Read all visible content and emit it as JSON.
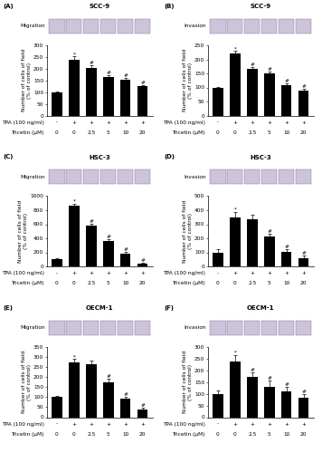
{
  "chart_data": [
    {
      "type": "bar",
      "panel_label": "(A)",
      "title": "SCC-9",
      "image_label": "Migration",
      "y_label": "Number of cells of field\n(% of control)",
      "color": "#000000",
      "categories": [
        null,
        null,
        null,
        null,
        null,
        null
      ],
      "values": [
        100,
        240,
        205,
        165,
        153,
        125
      ],
      "errors": [
        4,
        12,
        8,
        8,
        6,
        5
      ],
      "marks": [
        null,
        "*",
        "#",
        "#",
        "#",
        "#"
      ],
      "treatment_rows": [
        {
          "name": "TPA (100 ng/ml)",
          "values": [
            "-",
            "+",
            "+",
            "+",
            "+",
            "+"
          ]
        },
        {
          "name": "Tricetin (μM)",
          "values": [
            0,
            0,
            2.5,
            5,
            10,
            20
          ]
        }
      ],
      "ylim": [
        0,
        300
      ],
      "yticks": [
        0,
        50,
        100,
        150,
        200,
        250,
        300
      ]
    },
    {
      "type": "bar",
      "panel_label": "(B)",
      "title": "SCC-9",
      "image_label": "Invasion",
      "y_label": "Number of cells of field\n(% of control)",
      "color": "#000000",
      "categories": [
        null,
        null,
        null,
        null,
        null,
        null
      ],
      "values": [
        100,
        220,
        165,
        150,
        108,
        88
      ],
      "errors": [
        3,
        10,
        6,
        7,
        5,
        6
      ],
      "marks": [
        null,
        "*",
        "#",
        "#",
        "#",
        "#"
      ],
      "treatment_rows": [
        {
          "name": "TPA (100 ng/ml)",
          "values": [
            "-",
            "+",
            "+",
            "+",
            "+",
            "+"
          ]
        },
        {
          "name": "Tricetin (μM)",
          "values": [
            0,
            0,
            2.5,
            5,
            10,
            20
          ]
        }
      ],
      "ylim": [
        0,
        250
      ],
      "yticks": [
        0,
        50,
        100,
        150,
        200,
        250
      ]
    },
    {
      "type": "bar",
      "panel_label": "(C)",
      "title": "HSC-3",
      "image_label": "Migration",
      "y_label": "Number of cells of field\n(% of control)",
      "color": "#000000",
      "categories": [
        null,
        null,
        null,
        null,
        null,
        null
      ],
      "values": [
        100,
        870,
        575,
        365,
        185,
        45
      ],
      "errors": [
        10,
        25,
        30,
        25,
        20,
        10
      ],
      "marks": [
        null,
        "*",
        "#",
        "#",
        "#",
        "#"
      ],
      "treatment_rows": [
        {
          "name": "TPA (100 ng/ml)",
          "values": [
            "-",
            "+",
            "+",
            "+",
            "+",
            "+"
          ]
        },
        {
          "name": "Tricetin (μM)",
          "values": [
            0,
            0,
            2.5,
            5,
            10,
            20
          ]
        }
      ],
      "ylim": [
        0,
        1000
      ],
      "yticks": [
        0,
        200,
        400,
        600,
        800,
        1000
      ]
    },
    {
      "type": "bar",
      "panel_label": "(D)",
      "title": "HSC-3",
      "image_label": "Invasion",
      "y_label": "Number of cells of field\n(% of control)",
      "color": "#000000",
      "categories": [
        null,
        null,
        null,
        null,
        null,
        null
      ],
      "values": [
        100,
        350,
        335,
        210,
        105,
        55
      ],
      "errors": [
        20,
        40,
        30,
        20,
        15,
        20
      ],
      "marks": [
        null,
        "*",
        null,
        "#",
        "#",
        "#"
      ],
      "treatment_rows": [
        {
          "name": "TPA (100 ng/ml)",
          "values": [
            "-",
            "+",
            "+",
            "+",
            "+",
            "+"
          ]
        },
        {
          "name": "Tricetin (μM)",
          "values": [
            0,
            0,
            2.5,
            5,
            10,
            20
          ]
        }
      ],
      "ylim": [
        0,
        500
      ],
      "yticks": [
        0,
        100,
        200,
        300,
        400,
        500
      ]
    },
    {
      "type": "bar",
      "panel_label": "(E)",
      "title": "OECM-1",
      "image_label": "Migration",
      "y_label": "Number of cells of field\n(% of control)",
      "color": "#000000",
      "categories": [
        null,
        null,
        null,
        null,
        null,
        null
      ],
      "values": [
        100,
        272,
        262,
        175,
        92,
        40
      ],
      "errors": [
        8,
        18,
        20,
        15,
        10,
        8
      ],
      "marks": [
        null,
        "*",
        null,
        "#",
        "#",
        "#"
      ],
      "treatment_rows": [
        {
          "name": "TPA (100 ng/ml)",
          "values": [
            "-",
            "+",
            "+",
            "+",
            "+",
            "+"
          ]
        },
        {
          "name": "Tricetin (μM)",
          "values": [
            0,
            0,
            2.5,
            5,
            10,
            20
          ]
        }
      ],
      "ylim": [
        0,
        350
      ],
      "yticks": [
        0,
        50,
        100,
        150,
        200,
        250,
        300,
        350
      ]
    },
    {
      "type": "bar",
      "panel_label": "(F)",
      "title": "OECM-1",
      "image_label": "Invasion",
      "y_label": "Number of cells of field\n(% of control)",
      "color": "#000000",
      "categories": [
        null,
        null,
        null,
        null,
        null,
        null
      ],
      "values": [
        100,
        240,
        172,
        130,
        110,
        85
      ],
      "errors": [
        15,
        25,
        20,
        25,
        20,
        15
      ],
      "marks": [
        null,
        "*",
        "#",
        "#",
        "#",
        "#"
      ],
      "treatment_rows": [
        {
          "name": "TPA (100 ng/ml)",
          "values": [
            "-",
            "+",
            "+",
            "+",
            "+",
            "+"
          ]
        },
        {
          "name": "Tricetin (μM)",
          "values": [
            0,
            0,
            2.5,
            5,
            10,
            20
          ]
        }
      ],
      "ylim": [
        0,
        300
      ],
      "yticks": [
        0,
        50,
        100,
        150,
        200,
        250,
        300
      ]
    }
  ]
}
